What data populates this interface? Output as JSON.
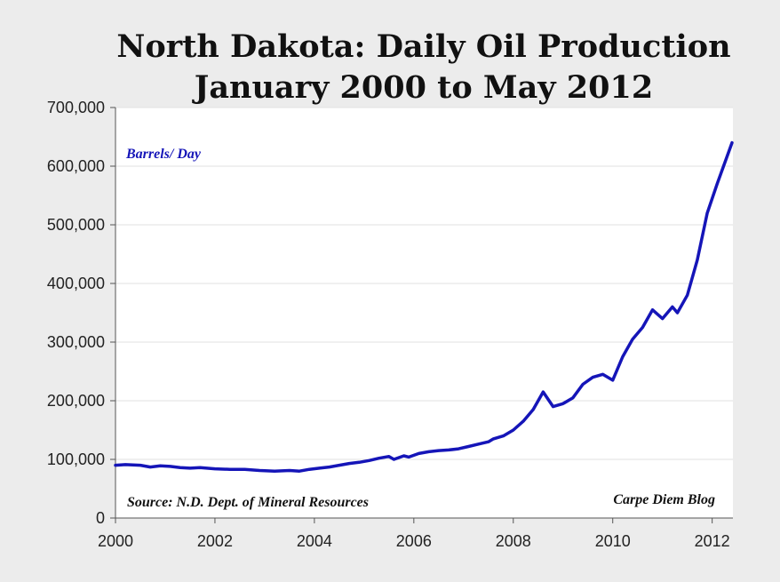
{
  "chart_data": {
    "type": "line",
    "title": "North Dakota: Daily Oil Production",
    "subtitle": "January 2000 to May 2012",
    "series_label": "Barrels/ Day",
    "source": "Source: N.D. Dept. of Mineral Resources",
    "credit": "Carpe Diem Blog",
    "xlim": [
      2000,
      2012.417
    ],
    "ylim": [
      0,
      700000
    ],
    "x_ticks": [
      2000,
      2002,
      2004,
      2006,
      2008,
      2010,
      2012
    ],
    "y_ticks": [
      0,
      100000,
      200000,
      300000,
      400000,
      500000,
      600000,
      700000
    ],
    "y_tick_labels": [
      "0",
      "100,000",
      "200,000",
      "300,000",
      "400,000",
      "500,000",
      "600,000",
      "700,000"
    ],
    "grid": true,
    "line_color": "#1515b8",
    "series": [
      {
        "x": [
          2000.0,
          2000.2,
          2000.5,
          2000.7,
          2000.9,
          2001.1,
          2001.3,
          2001.5,
          2001.7,
          2002.0,
          2002.3,
          2002.6,
          2002.9,
          2003.2,
          2003.5,
          2003.7,
          2003.9,
          2004.1,
          2004.3,
          2004.5,
          2004.7,
          2004.9,
          2005.1,
          2005.3,
          2005.5,
          2005.6,
          2005.8,
          2005.9,
          2006.1,
          2006.3,
          2006.5,
          2006.7,
          2006.9,
          2007.1,
          2007.3,
          2007.5,
          2007.6,
          2007.8,
          2008.0,
          2008.2,
          2008.4,
          2008.6,
          2008.8,
          2009.0,
          2009.2,
          2009.4,
          2009.6,
          2009.8,
          2010.0,
          2010.2,
          2010.4,
          2010.6,
          2010.7,
          2010.8,
          2011.0,
          2011.1,
          2011.2,
          2011.3,
          2011.5,
          2011.7,
          2011.9,
          2012.1,
          2012.4
        ],
        "y": [
          90000,
          91000,
          90000,
          87000,
          89000,
          88000,
          86000,
          85000,
          86000,
          84000,
          83000,
          83000,
          81000,
          80000,
          81000,
          80000,
          83000,
          85000,
          87000,
          90000,
          93000,
          95000,
          98000,
          102000,
          105000,
          100000,
          106000,
          104000,
          110000,
          113000,
          115000,
          116000,
          118000,
          122000,
          126000,
          130000,
          135000,
          140000,
          150000,
          165000,
          185000,
          215000,
          190000,
          195000,
          205000,
          228000,
          240000,
          245000,
          235000,
          275000,
          305000,
          325000,
          340000,
          355000,
          340000,
          350000,
          360000,
          350000,
          380000,
          440000,
          520000,
          570000,
          640000
        ]
      }
    ]
  }
}
